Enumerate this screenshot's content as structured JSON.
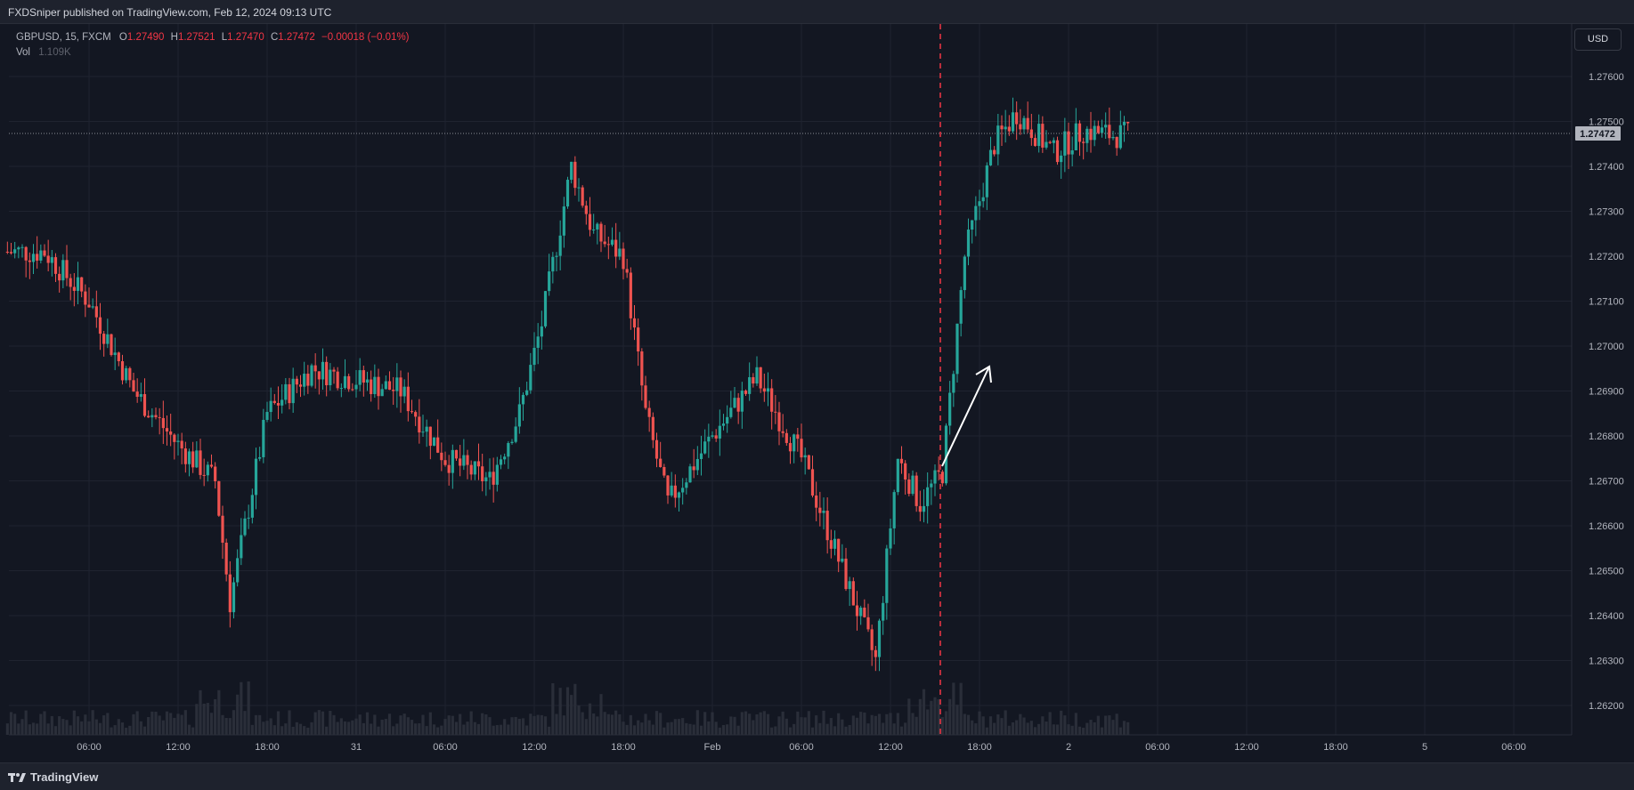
{
  "header": {
    "publisher": "FXDSniper published on TradingView.com, Feb 12, 2024 09:13 UTC"
  },
  "legend": {
    "symbol": "GBPUSD, 15, FXCM",
    "open_label": "O",
    "open": "1.27490",
    "high_label": "H",
    "high": "1.27521",
    "low_label": "L",
    "low": "1.27470",
    "close_label": "C",
    "close": "1.27472",
    "change": "−0.00018 (−0.01%)",
    "vol_label": "Vol",
    "vol": "1.109K"
  },
  "currency_button": "USD",
  "footer": {
    "brand": "TradingView"
  },
  "colors": {
    "up": "#26a69a",
    "down": "#ef5350",
    "bg": "#131722",
    "grid": "#1f2330",
    "marker": "#f23645",
    "arrow": "#ffffff"
  },
  "chart_data": {
    "type": "candlestick",
    "symbol": "GBPUSD",
    "timeframe": "15",
    "ylim": [
      1.2615,
      1.2775
    ],
    "y_ticks": [
      "1.27600",
      "1.27500",
      "1.27400",
      "1.27300",
      "1.27200",
      "1.27100",
      "1.27000",
      "1.26900",
      "1.26800",
      "1.26700",
      "1.26600",
      "1.26500",
      "1.26400",
      "1.26300",
      "1.26200"
    ],
    "x_ticks": [
      "06:00",
      "12:00",
      "18:00",
      "31",
      "06:00",
      "12:00",
      "18:00",
      "Feb",
      "06:00",
      "12:00",
      "18:00",
      "2",
      "06:00",
      "12:00",
      "18:00",
      "5",
      "06:00"
    ],
    "last_price": "1.27472",
    "vertical_marker_label": "Feb 1 ~15:30 (event)",
    "key_points": [
      {
        "time": "Jan 30 03:00",
        "price": 1.2721
      },
      {
        "time": "Jan 30 06:00",
        "price": 1.271
      },
      {
        "time": "Jan 30 09:00",
        "price": 1.269
      },
      {
        "time": "Jan 30 12:00",
        "price": 1.2678
      },
      {
        "time": "Jan 30 14:30",
        "price": 1.267
      },
      {
        "time": "Jan 30 15:30",
        "price": 1.2643
      },
      {
        "time": "Jan 30 18:00",
        "price": 1.2685
      },
      {
        "time": "Jan 30 21:00",
        "price": 1.2695
      },
      {
        "time": "Jan 31 03:00",
        "price": 1.269
      },
      {
        "time": "Jan 31 06:00",
        "price": 1.2675
      },
      {
        "time": "Jan 31 09:00",
        "price": 1.267
      },
      {
        "time": "Jan 31 11:00",
        "price": 1.2685
      },
      {
        "time": "Jan 31 12:30",
        "price": 1.2705
      },
      {
        "time": "Jan 31 14:30",
        "price": 1.274
      },
      {
        "time": "Jan 31 16:00",
        "price": 1.2725
      },
      {
        "time": "Jan 31 18:00",
        "price": 1.272
      },
      {
        "time": "Jan 31 19:30",
        "price": 1.2685
      },
      {
        "time": "Jan 31 21:00",
        "price": 1.2665
      },
      {
        "time": "Feb 1 00:00",
        "price": 1.268
      },
      {
        "time": "Feb 1 03:00",
        "price": 1.2693
      },
      {
        "time": "Feb 1 06:00",
        "price": 1.2675
      },
      {
        "time": "Feb 1 09:00",
        "price": 1.2648
      },
      {
        "time": "Feb 1 11:00",
        "price": 1.263
      },
      {
        "time": "Feb 1 12:30",
        "price": 1.2675
      },
      {
        "time": "Feb 1 14:00",
        "price": 1.2665
      },
      {
        "time": "Feb 1 15:30",
        "price": 1.2672
      },
      {
        "time": "Feb 1 17:00",
        "price": 1.272
      },
      {
        "time": "Feb 1 19:00",
        "price": 1.2745
      },
      {
        "time": "Feb 1 20:30",
        "price": 1.2752
      },
      {
        "time": "Feb 1 23:00",
        "price": 1.2743
      },
      {
        "time": "Feb 2 01:00",
        "price": 1.2748
      },
      {
        "time": "Feb 2 03:00",
        "price": 1.2747
      }
    ]
  }
}
